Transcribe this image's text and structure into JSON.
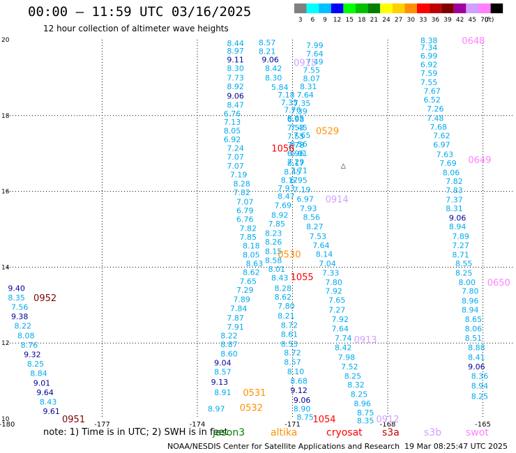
{
  "header": {
    "title": "00:00 – 11:59 UTC 03/16/2025",
    "subtitle": "12 hour collection of altimeter wave heights"
  },
  "legend": {
    "unit": "(ft)",
    "swatches": [
      {
        "label": "3",
        "color": "#808080"
      },
      {
        "label": "6",
        "color": "#00ffff"
      },
      {
        "label": "9",
        "color": "#00c0ff"
      },
      {
        "label": "12",
        "color": "#0000ff"
      },
      {
        "label": "15",
        "color": "#00ff00"
      },
      {
        "label": "18",
        "color": "#00c000"
      },
      {
        "label": "21",
        "color": "#008000"
      },
      {
        "label": "24",
        "color": "#ffff00"
      },
      {
        "label": "27",
        "color": "#ffd000"
      },
      {
        "label": "30",
        "color": "#ff9000"
      },
      {
        "label": "33",
        "color": "#ff0000"
      },
      {
        "label": "36",
        "color": "#c00000"
      },
      {
        "label": "39",
        "color": "#800000"
      },
      {
        "label": "42",
        "color": "#a000a0"
      },
      {
        "label": "45",
        "color": "#d0a0ff"
      },
      {
        "label": "70",
        "color": "#ff80ff"
      },
      {
        "label": "",
        "color": "#000000"
      }
    ]
  },
  "footer": {
    "note": "note: 1) Time is in UTC; 2) SWH is in feet",
    "credit": "NOAA/NESDIS Center for Satellite Applications and Research",
    "timestamp": "19 Mar 08:25:47 UTC 2025",
    "satellites": [
      {
        "name": "jason3",
        "color": "#008000"
      },
      {
        "name": "altika",
        "color": "#ff9000"
      },
      {
        "name": "cryosat",
        "color": "#ff0000"
      },
      {
        "name": "s3a",
        "color": "#c00000"
      },
      {
        "name": "s3b",
        "color": "#d0a0ff"
      },
      {
        "name": "swot",
        "color": "#ff80ff"
      }
    ]
  },
  "chart_data": {
    "type": "scatter",
    "title": "00:00 – 11:59 UTC 03/16/2025",
    "subtitle": "12 hour collection of altimeter wave heights",
    "xlim": [
      -180,
      -164
    ],
    "ylim": [
      10,
      20
    ],
    "x_ticks": [
      "-180",
      "-177",
      "-174",
      "-171",
      "-168",
      "-165"
    ],
    "y_ticks": [
      "10",
      "12",
      "14",
      "16",
      "18",
      "20"
    ],
    "grid": true,
    "value_colors": {
      "lt9": "#00aaee",
      "b9_12": "#000099"
    },
    "tracks": [
      {
        "name": "pass-1",
        "color": "#00aaee",
        "points": [
          [
            -172.8,
            19.91,
            "8.44"
          ],
          [
            -172.8,
            19.71,
            "8.97"
          ],
          [
            -172.8,
            19.48,
            "9.11"
          ],
          [
            -172.8,
            19.25,
            "8.30"
          ],
          [
            -172.8,
            19.0,
            "7.73"
          ],
          [
            -172.8,
            18.77,
            "8.92"
          ],
          [
            -172.8,
            18.52,
            "9.06"
          ],
          [
            -172.8,
            18.28,
            "8.47"
          ],
          [
            -172.9,
            18.05,
            "6.76"
          ],
          [
            -172.9,
            17.83,
            "7.13"
          ],
          [
            -172.9,
            17.6,
            "8.05"
          ],
          [
            -172.9,
            17.37,
            "6.92"
          ],
          [
            -172.8,
            17.14,
            "7.24"
          ],
          [
            -172.8,
            16.91,
            "7.07"
          ],
          [
            -172.8,
            16.67,
            "7.07"
          ],
          [
            -172.7,
            16.44,
            "7.19"
          ],
          [
            -172.6,
            16.2,
            "8.28"
          ],
          [
            -172.6,
            15.97,
            "7.82"
          ],
          [
            -172.5,
            15.73,
            "7.07"
          ],
          [
            -172.5,
            15.5,
            "6.79"
          ],
          [
            -172.5,
            15.27,
            "6.76"
          ],
          [
            -172.4,
            15.03,
            "7.82"
          ],
          [
            -172.4,
            14.8,
            "7.85"
          ],
          [
            -172.3,
            14.57,
            "8.18"
          ],
          [
            -172.3,
            14.33,
            "8.05"
          ],
          [
            -172.2,
            14.1,
            "8.63"
          ],
          [
            -172.3,
            13.87,
            "8.62"
          ],
          [
            -172.4,
            13.63,
            "7.65"
          ],
          [
            -172.5,
            13.4,
            "7.29"
          ],
          [
            -172.6,
            13.15,
            "7.89"
          ],
          [
            -172.7,
            12.91,
            "7.84"
          ],
          [
            -172.8,
            12.67,
            "7.87"
          ],
          [
            -172.8,
            12.43,
            "7.91"
          ],
          [
            -173.0,
            12.2,
            "8.22"
          ],
          [
            -173.0,
            11.97,
            "8.87"
          ],
          [
            -173.0,
            11.72,
            "8.60"
          ],
          [
            -173.2,
            11.48,
            "9.04"
          ],
          [
            -173.2,
            11.24,
            "8.57"
          ],
          [
            -173.3,
            10.97,
            "9.13"
          ],
          [
            -173.2,
            10.7,
            "8.91"
          ],
          [
            -173.4,
            10.27,
            "8.97"
          ]
        ]
      },
      {
        "name": "pass-2",
        "color": "#00aaee",
        "points": [
          [
            -171.8,
            19.93,
            "8.57"
          ],
          [
            -171.8,
            19.7,
            "8.21"
          ],
          [
            -171.7,
            19.48,
            "9.06"
          ],
          [
            -171.6,
            19.25,
            "8.42"
          ],
          [
            -171.6,
            19.0,
            "8.30"
          ],
          [
            -171.4,
            18.75,
            "5.84"
          ],
          [
            -171.2,
            18.55,
            "7.18"
          ],
          [
            -171.1,
            18.35,
            "7.35"
          ],
          [
            -171.0,
            18.15,
            "7.76"
          ],
          [
            -170.9,
            17.93,
            "8.85"
          ],
          [
            -170.8,
            17.68,
            "7.45"
          ],
          [
            -170.7,
            17.48,
            "7.65"
          ],
          [
            -170.8,
            17.25,
            "8.56"
          ],
          [
            -170.8,
            17.0,
            "6.01"
          ],
          [
            -170.9,
            16.75,
            "8.17"
          ],
          [
            -171.0,
            16.52,
            "8.45"
          ],
          [
            -171.1,
            16.3,
            "8.17"
          ],
          [
            -171.2,
            16.08,
            "7.93"
          ],
          [
            -171.2,
            15.87,
            "8.47"
          ],
          [
            -171.3,
            15.63,
            "7.69"
          ],
          [
            -171.4,
            15.38,
            "8.92"
          ],
          [
            -171.5,
            15.15,
            "7.85"
          ],
          [
            -171.6,
            14.9,
            "8.23"
          ],
          [
            -171.6,
            14.67,
            "8.26"
          ],
          [
            -171.6,
            14.42,
            "8.15"
          ],
          [
            -171.6,
            14.18,
            "8.58"
          ],
          [
            -171.5,
            13.95,
            "8.01"
          ],
          [
            -171.4,
            13.72,
            "8.43"
          ],
          [
            -171.3,
            13.45,
            "8.28"
          ],
          [
            -171.3,
            13.22,
            "8.62"
          ],
          [
            -171.2,
            12.98,
            "7.80"
          ],
          [
            -171.2,
            12.72,
            "8.21"
          ],
          [
            -171.1,
            12.47,
            "8.72"
          ],
          [
            -171.1,
            12.23,
            "8.61"
          ],
          [
            -171.1,
            11.98,
            "8.53"
          ],
          [
            -171.0,
            11.75,
            "8.72"
          ],
          [
            -171.0,
            11.5,
            "8.57"
          ],
          [
            -170.9,
            11.25,
            "8.10"
          ],
          [
            -170.8,
            11.0,
            "8.68"
          ],
          [
            -170.8,
            10.75,
            "9.12"
          ],
          [
            -170.7,
            10.5,
            "9.06"
          ],
          [
            -170.7,
            10.27,
            "8.90"
          ],
          [
            -170.6,
            10.05,
            "8.75"
          ]
        ]
      },
      {
        "name": "pass-3",
        "color": "#00aaee",
        "points": [
          [
            -170.3,
            19.85,
            "7.99"
          ],
          [
            -170.3,
            19.63,
            "7.64"
          ],
          [
            -170.3,
            19.42,
            "7.49"
          ],
          [
            -170.4,
            19.2,
            "7.55"
          ],
          [
            -170.4,
            18.98,
            "8.07"
          ],
          [
            -170.5,
            18.77,
            "8.31"
          ],
          [
            -170.6,
            18.55,
            "7.64"
          ],
          [
            -170.7,
            18.33,
            "7.35"
          ],
          [
            -170.8,
            18.12,
            "7.39"
          ],
          [
            -170.9,
            17.9,
            "6.98"
          ],
          [
            -170.9,
            17.68,
            "7.53"
          ],
          [
            -170.9,
            17.45,
            "7.55"
          ],
          [
            -170.9,
            17.22,
            "7.78"
          ],
          [
            -170.9,
            17.0,
            "6.96"
          ],
          [
            -170.9,
            16.78,
            "7.29"
          ],
          [
            -170.8,
            16.55,
            "7.71"
          ],
          [
            -170.8,
            16.3,
            "6.95"
          ],
          [
            -170.7,
            16.05,
            "7.19"
          ],
          [
            -170.6,
            15.8,
            "6.97"
          ],
          [
            -170.5,
            15.55,
            "7.93"
          ],
          [
            -170.4,
            15.32,
            "8.56"
          ],
          [
            -170.3,
            15.07,
            "8.27"
          ],
          [
            -170.2,
            14.82,
            "7.53"
          ],
          [
            -170.1,
            14.58,
            "7.64"
          ],
          [
            -170.0,
            14.35,
            "8.14"
          ],
          [
            -169.9,
            14.1,
            "7.04"
          ],
          [
            -169.8,
            13.85,
            "7.33"
          ],
          [
            -169.7,
            13.6,
            "7.80"
          ],
          [
            -169.7,
            13.37,
            "7.92"
          ],
          [
            -169.6,
            13.13,
            "7.65"
          ],
          [
            -169.6,
            12.88,
            "7.27"
          ],
          [
            -169.5,
            12.63,
            "7.92"
          ],
          [
            -169.5,
            12.38,
            "7.64"
          ],
          [
            -169.4,
            12.13,
            "7.74"
          ],
          [
            -169.4,
            11.88,
            "8.42"
          ],
          [
            -169.3,
            11.63,
            "7.98"
          ],
          [
            -169.2,
            11.38,
            "7.52"
          ],
          [
            -169.1,
            11.13,
            "8.25"
          ],
          [
            -169.0,
            10.9,
            "8.32"
          ],
          [
            -168.9,
            10.65,
            "8.25"
          ],
          [
            -168.8,
            10.4,
            "8.96"
          ],
          [
            -168.7,
            10.17,
            "8.75"
          ],
          [
            -168.7,
            9.95,
            "8.35"
          ]
        ]
      },
      {
        "name": "pass-4",
        "color": "#00aaee",
        "points": [
          [
            -166.7,
            19.98,
            "8.38"
          ],
          [
            -166.7,
            19.8,
            "7.34"
          ],
          [
            -166.7,
            19.58,
            "6.99"
          ],
          [
            -166.7,
            19.35,
            "6.92"
          ],
          [
            -166.7,
            19.12,
            "7.59"
          ],
          [
            -166.7,
            18.88,
            "7.55"
          ],
          [
            -166.6,
            18.65,
            "7.67"
          ],
          [
            -166.6,
            18.42,
            "6.52"
          ],
          [
            -166.5,
            18.18,
            "7.26"
          ],
          [
            -166.5,
            17.93,
            "7.48"
          ],
          [
            -166.4,
            17.7,
            "7.68"
          ],
          [
            -166.3,
            17.47,
            "7.62"
          ],
          [
            -166.3,
            17.23,
            "6.97"
          ],
          [
            -166.2,
            16.98,
            "7.63"
          ],
          [
            -166.1,
            16.75,
            "7.69"
          ],
          [
            -166.0,
            16.5,
            "8.06"
          ],
          [
            -165.9,
            16.27,
            "7.82"
          ],
          [
            -165.9,
            16.03,
            "7.83"
          ],
          [
            -165.9,
            15.78,
            "7.37"
          ],
          [
            -165.9,
            15.55,
            "8.31"
          ],
          [
            -165.8,
            15.3,
            "9.06"
          ],
          [
            -165.8,
            15.07,
            "8.94"
          ],
          [
            -165.7,
            14.82,
            "7.89"
          ],
          [
            -165.7,
            14.58,
            "7.27"
          ],
          [
            -165.7,
            14.33,
            "8.71"
          ],
          [
            -165.6,
            14.1,
            "8.55"
          ],
          [
            -165.6,
            13.85,
            "8.25"
          ],
          [
            -165.5,
            13.6,
            "8.00"
          ],
          [
            -165.4,
            13.37,
            "7.80"
          ],
          [
            -165.4,
            13.12,
            "8.96"
          ],
          [
            -165.4,
            12.88,
            "8.94"
          ],
          [
            -165.3,
            12.63,
            "8.65"
          ],
          [
            -165.3,
            12.38,
            "8.06"
          ],
          [
            -165.3,
            12.13,
            "8.51"
          ],
          [
            -165.2,
            11.88,
            "8.88"
          ],
          [
            -165.2,
            11.63,
            "8.41"
          ],
          [
            -165.2,
            11.38,
            "9.06"
          ],
          [
            -165.1,
            11.13,
            "8.36"
          ],
          [
            -165.1,
            10.87,
            "8.94"
          ],
          [
            -165.1,
            10.6,
            "8.25"
          ]
        ]
      },
      {
        "name": "pass-5",
        "color": "#00aaee",
        "points": [
          [
            -179.7,
            13.45,
            "9.40"
          ],
          [
            -179.7,
            13.2,
            "8.35"
          ],
          [
            -179.6,
            12.95,
            "7.56"
          ],
          [
            -179.6,
            12.7,
            "9.38"
          ],
          [
            -179.5,
            12.45,
            "8.22"
          ],
          [
            -179.4,
            12.2,
            "8.08"
          ],
          [
            -179.3,
            11.95,
            "8.76"
          ],
          [
            -179.2,
            11.7,
            "9.32"
          ],
          [
            -179.1,
            11.45,
            "8.25"
          ],
          [
            -179.0,
            11.2,
            "8.84"
          ],
          [
            -178.9,
            10.95,
            "9.01"
          ],
          [
            -178.8,
            10.7,
            "9.64"
          ],
          [
            -178.7,
            10.45,
            "8.43"
          ],
          [
            -178.6,
            10.2,
            "9.61"
          ]
        ]
      }
    ],
    "pass_times": [
      {
        "label": "0648",
        "color": "#ff80ff",
        "x": -165.3,
        "y": 19.98
      },
      {
        "label": "0915",
        "color": "#d0a0ff",
        "x": -170.6,
        "y": 19.4
      },
      {
        "label": "0529",
        "color": "#ff9000",
        "x": -169.9,
        "y": 17.6
      },
      {
        "label": "1056",
        "color": "#ff0000",
        "x": -171.3,
        "y": 17.14
      },
      {
        "label": "0649",
        "color": "#ff80ff",
        "x": -165.1,
        "y": 16.84
      },
      {
        "label": "0914",
        "color": "#d0a0ff",
        "x": -169.6,
        "y": 15.8
      },
      {
        "label": "0530",
        "color": "#ff9000",
        "x": -171.1,
        "y": 14.35
      },
      {
        "label": "1055",
        "color": "#ff0000",
        "x": -170.7,
        "y": 13.75
      },
      {
        "label": "0650",
        "color": "#ff80ff",
        "x": -164.5,
        "y": 13.6
      },
      {
        "label": "0952",
        "color": "#800000",
        "x": -178.8,
        "y": 13.2
      },
      {
        "label": "0913",
        "color": "#d0a0ff",
        "x": -168.7,
        "y": 12.1
      },
      {
        "label": "0531",
        "color": "#ff9000",
        "x": -172.2,
        "y": 10.7
      },
      {
        "label": "0532",
        "color": "#ff9000",
        "x": -172.3,
        "y": 10.3
      },
      {
        "label": "1054",
        "color": "#ff0000",
        "x": -170.0,
        "y": 10.0
      },
      {
        "label": "0912",
        "color": "#d0a0ff",
        "x": -168.0,
        "y": 10.0
      },
      {
        "label": "0951",
        "color": "#800000",
        "x": -177.9,
        "y": 10.0
      }
    ]
  }
}
